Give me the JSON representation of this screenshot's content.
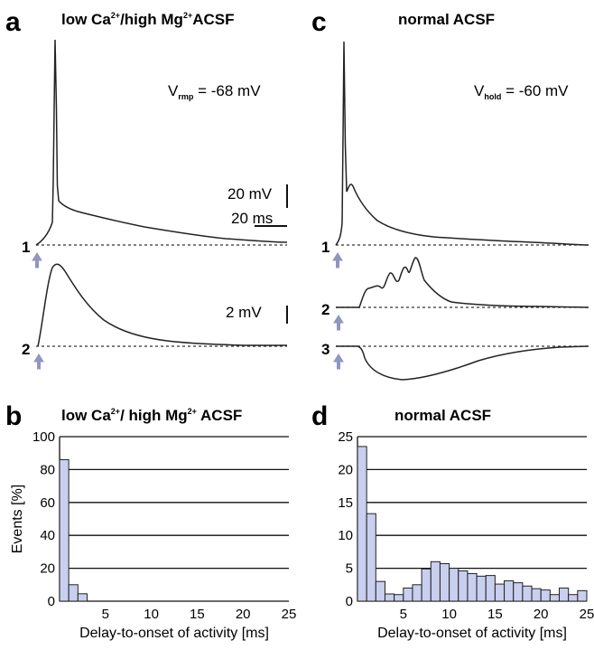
{
  "panels": {
    "a": {
      "label": "a",
      "title_pre": "low Ca",
      "title_mid": "/high Mg",
      "title_post": "ACSF",
      "sup": "2+",
      "v_main": "V",
      "v_sub": "rmp",
      "v_val": " = -68 mV",
      "scale_mv": "20 mV",
      "scale_ms": "20 ms",
      "scale2_mv": "2 mV",
      "trace1_label": "1",
      "trace2_label": "2"
    },
    "c": {
      "label": "c",
      "title": "normal ACSF",
      "v_main": "V",
      "v_sub": "hold",
      "v_val": " = -60 mV",
      "trace1_label": "1",
      "trace2_label": "2",
      "trace3_label": "3"
    },
    "b": {
      "label": "b",
      "title_pre": "low Ca",
      "title_mid": "/ high Mg",
      "title_post": " ACSF",
      "sup": "2+"
    },
    "d": {
      "label": "d",
      "title": "normal ACSF"
    }
  },
  "chart_data": [
    {
      "type": "bar",
      "panel": "b",
      "title": "low Ca2+/ high Mg2+ ACSF",
      "xlabel": "Delay-to-onset of activity [ms]",
      "ylabel": "Events [%]",
      "bin_width_ms": 1,
      "x": [
        0.5,
        1.5,
        2.5
      ],
      "values": [
        86,
        10,
        4.5
      ],
      "xlim": [
        0,
        25
      ],
      "ylim": [
        0,
        100
      ],
      "xticks": [
        5,
        10,
        15,
        20,
        25
      ],
      "yticks": [
        0,
        20,
        40,
        60,
        80,
        100
      ],
      "grid": true
    },
    {
      "type": "bar",
      "panel": "d",
      "title": "normal ACSF",
      "xlabel": "Delay-to-onset of activity [ms]",
      "ylabel": "",
      "bin_width_ms": 1,
      "x": [
        0.5,
        1.5,
        2.5,
        3.5,
        4.5,
        5.5,
        6.5,
        7.5,
        8.5,
        9.5,
        10.5,
        11.5,
        12.5,
        13.5,
        14.5,
        15.5,
        16.5,
        17.5,
        18.5,
        19.5,
        20.5,
        21.5,
        22.5,
        23.5,
        24.5
      ],
      "values": [
        23.5,
        13.3,
        3.0,
        1.1,
        1.0,
        2.0,
        2.5,
        4.9,
        6.0,
        5.7,
        5.0,
        4.6,
        4.2,
        3.8,
        3.9,
        2.6,
        3.1,
        2.8,
        2.3,
        1.9,
        1.7,
        1.0,
        2.0,
        1.0,
        1.6
      ],
      "xlim": [
        0,
        25
      ],
      "ylim": [
        0,
        25
      ],
      "xticks": [
        5,
        10,
        15,
        20,
        25
      ],
      "yticks": [
        0,
        5,
        10,
        15,
        20,
        25
      ],
      "grid": true
    }
  ]
}
